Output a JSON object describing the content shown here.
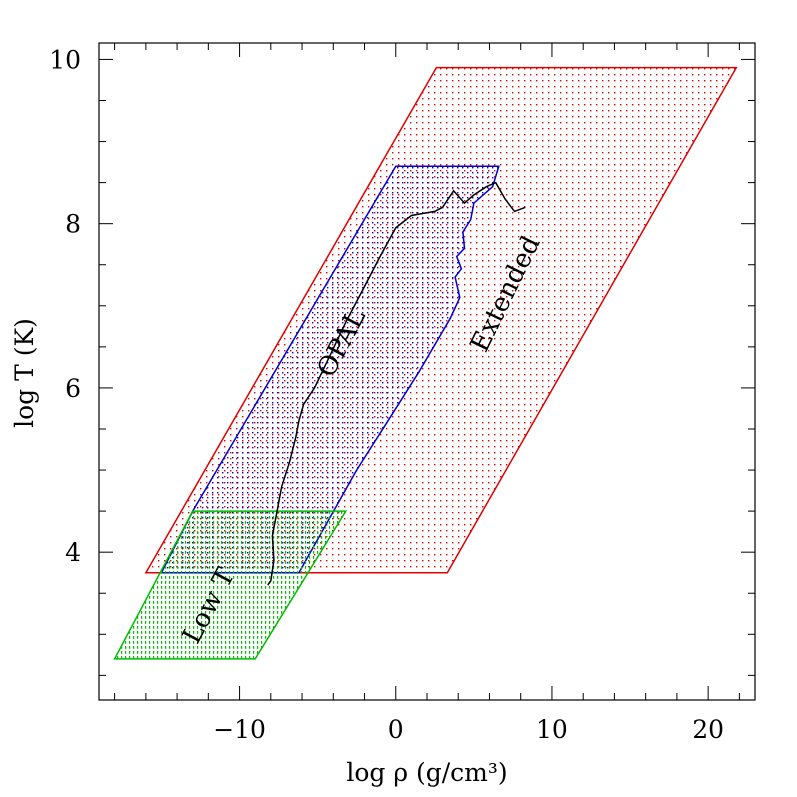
{
  "chart_data": {
    "type": "area",
    "title": "",
    "xlabel": "log ρ   (g/cm³)",
    "ylabel": "log T   (K)",
    "xlim": [
      -19,
      23
    ],
    "ylim": [
      2.2,
      10.2
    ],
    "xticks": [
      -10,
      0,
      10,
      20
    ],
    "xtick_labels": [
      "−10",
      "0",
      "10",
      "20"
    ],
    "yticks": [
      4,
      6,
      8,
      10
    ],
    "ytick_labels": [
      "4",
      "6",
      "8",
      "10"
    ],
    "minor_x_step": 2,
    "minor_y_step": 0.5,
    "grid": false,
    "series": [
      {
        "name": "Extended",
        "color": "#e00000",
        "polygon": [
          [
            -16,
            3.75
          ],
          [
            3.3,
            3.75
          ],
          [
            21.8,
            9.9
          ],
          [
            2.6,
            9.9
          ]
        ]
      },
      {
        "name": "OPAL",
        "color": "#0000d0",
        "polygon": [
          [
            -15,
            3.75
          ],
          [
            -6.2,
            3.75
          ],
          [
            -2.5,
            5.0
          ],
          [
            -0.5,
            5.6
          ],
          [
            1.5,
            6.2
          ],
          [
            3.5,
            6.85
          ],
          [
            4.1,
            7.1
          ],
          [
            3.8,
            7.35
          ],
          [
            4.2,
            7.45
          ],
          [
            3.9,
            7.6
          ],
          [
            4.4,
            7.7
          ],
          [
            4.3,
            7.9
          ],
          [
            4.8,
            8.05
          ],
          [
            5.0,
            8.25
          ],
          [
            6.2,
            8.45
          ],
          [
            6.6,
            8.7
          ],
          [
            0,
            8.7
          ],
          [
            -13,
            4.5
          ]
        ]
      },
      {
        "name": "Low T",
        "color": "#00bb00",
        "polygon": [
          [
            -18,
            2.7
          ],
          [
            -9,
            2.7
          ],
          [
            -3.2,
            4.5
          ],
          [
            -13,
            4.5
          ]
        ]
      },
      {
        "name": "",
        "color": "#000000",
        "points": [
          [
            -8.2,
            3.6
          ],
          [
            -8.0,
            3.65
          ],
          [
            -7.8,
            3.9
          ],
          [
            -7.9,
            4.2
          ],
          [
            -7.6,
            4.5
          ],
          [
            -7.3,
            4.8
          ],
          [
            -6.8,
            5.1
          ],
          [
            -6.4,
            5.4
          ],
          [
            -6.2,
            5.6
          ],
          [
            -5.9,
            5.8
          ],
          [
            -5.2,
            6.0
          ],
          [
            -4.2,
            6.4
          ],
          [
            -3.2,
            6.8
          ],
          [
            -2.1,
            7.2
          ],
          [
            -1.0,
            7.6
          ],
          [
            0.0,
            7.95
          ],
          [
            1.0,
            8.1
          ],
          [
            2.5,
            8.15
          ],
          [
            3.0,
            8.2
          ],
          [
            3.7,
            8.4
          ],
          [
            4.4,
            8.25
          ],
          [
            5.0,
            8.35
          ],
          [
            5.8,
            8.45
          ],
          [
            6.4,
            8.5
          ],
          [
            7.0,
            8.3
          ],
          [
            7.6,
            8.15
          ],
          [
            8.3,
            8.2
          ]
        ]
      }
    ],
    "labels": [
      {
        "text": "Extended",
        "x": 7.5,
        "y": 7.1,
        "rotate": -64
      },
      {
        "text": "OPAL",
        "x": -3.0,
        "y": 6.5,
        "rotate": -62
      },
      {
        "text": "Low T",
        "x": -11.5,
        "y": 3.3,
        "rotate": -62
      }
    ]
  }
}
